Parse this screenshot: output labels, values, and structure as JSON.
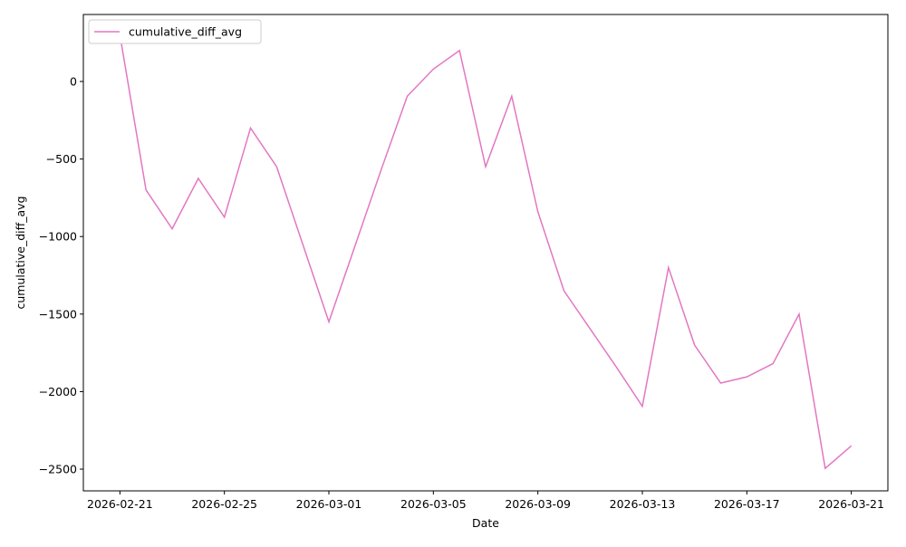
{
  "chart_data": {
    "type": "line",
    "x": [
      "2026-02-21",
      "2026-02-22",
      "2026-02-23",
      "2026-02-24",
      "2026-02-25",
      "2026-02-26",
      "2026-02-27",
      "2026-02-28",
      "2026-03-01",
      "2026-03-02",
      "2026-03-03",
      "2026-03-04",
      "2026-03-05",
      "2026-03-06",
      "2026-03-07",
      "2026-03-08",
      "2026-03-09",
      "2026-03-10",
      "2026-03-11",
      "2026-03-12",
      "2026-03-13",
      "2026-03-14",
      "2026-03-15",
      "2026-03-16",
      "2026-03-17",
      "2026-03-18",
      "2026-03-19",
      "2026-03-20",
      "2026-03-21"
    ],
    "series": [
      {
        "name": "cumulative_diff_avg",
        "color": "#e377c2",
        "values": [
          300,
          -700,
          -950,
          -625,
          -875,
          -300,
          -550,
          -1050,
          -1550,
          -1060,
          -570,
          -95,
          80,
          200,
          -550,
          -95,
          -840,
          -1350,
          -1595,
          -1840,
          -2095,
          -1200,
          -1700,
          -1945,
          -1905,
          -1820,
          -1500,
          -2495,
          -2350
        ]
      }
    ],
    "xlabel": "Date",
    "ylabel": "cumulative_diff_avg",
    "ylim": [
      -2640,
      432
    ],
    "yticks": [
      {
        "value": -2500,
        "label": "−2500"
      },
      {
        "value": -2000,
        "label": "−2000"
      },
      {
        "value": -1500,
        "label": "−1500"
      },
      {
        "value": -1000,
        "label": "−1000"
      },
      {
        "value": -500,
        "label": "−500"
      },
      0
    ],
    "xticks": [
      "2026-02-21",
      "2026-02-25",
      "2026-03-01",
      "2026-03-05",
      "2026-03-09",
      "2026-03-13",
      "2026-03-17",
      "2026-03-21"
    ],
    "legend": "upper left",
    "grid": false
  }
}
